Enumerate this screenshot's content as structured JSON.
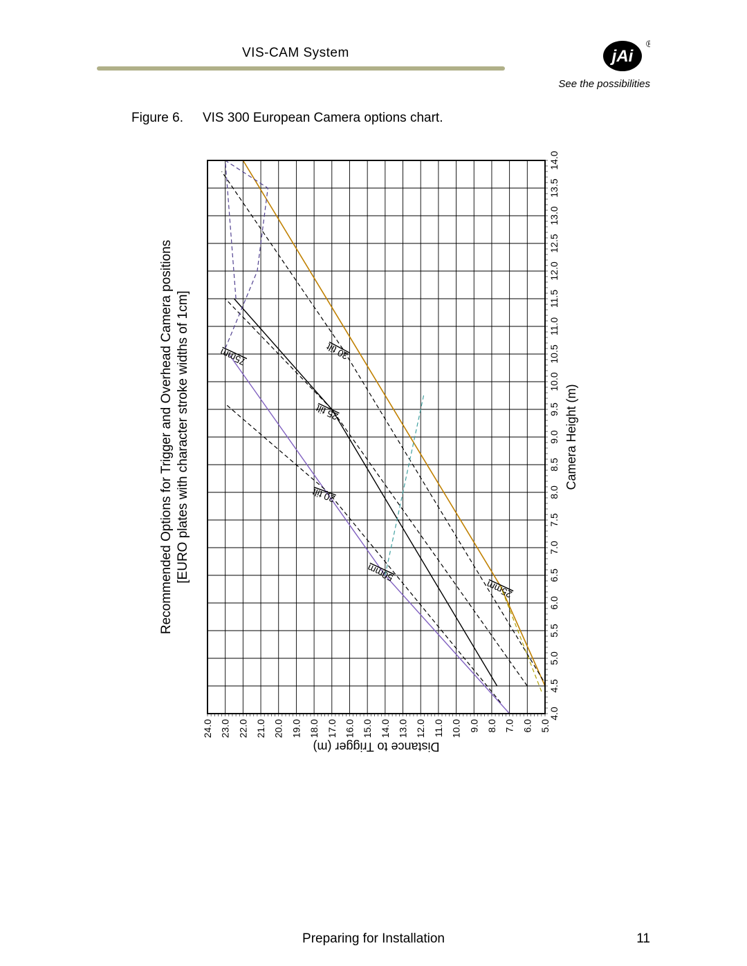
{
  "header": {
    "title": "VIS-CAM System",
    "tagline": "See the possibilities",
    "rule_color": "#b0b088",
    "logo_bg": "#000000",
    "logo_fg": "#ffffff"
  },
  "figure": {
    "label": "Figure 6.",
    "caption": "VIS 300 European Camera options chart."
  },
  "chart": {
    "type": "line",
    "title_line1": "Recommended Options for Trigger and Overhead Camera positions",
    "title_line2": "[EURO plates with character stroke widths of 1cm]",
    "title_fontsize": 19,
    "xlabel": "Camera Height (m)",
    "ylabel": "Distance to Trigger (m)",
    "axis_label_fontsize": 18,
    "tick_fontsize": 14,
    "background_color": "#ffffff",
    "grid_color": "#000000",
    "border_color": "#000000",
    "x": {
      "min": 4.0,
      "max": 14.0,
      "ticks": [
        4.0,
        4.5,
        5.0,
        5.5,
        6.0,
        6.5,
        7.0,
        7.5,
        8.0,
        8.5,
        9.0,
        9.5,
        10.0,
        10.5,
        11.0,
        11.5,
        12.0,
        12.5,
        13.0,
        13.5,
        14.0
      ],
      "minor_step": 0.1
    },
    "y": {
      "min": 5.0,
      "max": 24.0,
      "ticks": [
        5.0,
        6.0,
        7.0,
        8.0,
        9.0,
        10.0,
        11.0,
        12.0,
        13.0,
        14.0,
        15.0,
        16.0,
        17.0,
        18.0,
        19.0,
        20.0,
        21.0,
        22.0,
        23.0,
        24.0
      ],
      "minor_step": 0.2
    },
    "series": [
      {
        "name": "25mm",
        "label": "25mm",
        "color": "#c08000",
        "width": 1.6,
        "dash": "",
        "points": [
          [
            4.5,
            5.0
          ],
          [
            6.3,
            7.5
          ],
          [
            14.0,
            22.0
          ]
        ],
        "label_at": [
          6.3,
          7.5
        ],
        "label_angle": -65
      },
      {
        "name": "50mm",
        "label": "50mm",
        "color": "#8060c0",
        "width": 1.4,
        "dash": "",
        "points": [
          [
            4.0,
            7.0
          ],
          [
            6.5,
            14.0
          ],
          [
            10.5,
            22.8
          ]
        ],
        "label_at": [
          6.6,
          14.2
        ],
        "label_angle": -65
      },
      {
        "name": "75mm",
        "label": "75mm",
        "color": "#000000",
        "width": 1.4,
        "dash": "",
        "points": [
          [
            4.5,
            7.7
          ],
          [
            9.5,
            17.0
          ],
          [
            11.5,
            22.5
          ]
        ],
        "label_at": [
          10.5,
          22.5
        ],
        "label_angle": -65
      },
      {
        "name": "tilt20",
        "label": "20 tilt",
        "color": "#000000",
        "width": 1.2,
        "dash": "6,4",
        "points": [
          [
            4.2,
            7.5
          ],
          [
            8.0,
            17.2
          ],
          [
            9.6,
            23.0
          ]
        ],
        "label_at": [
          8.0,
          17.4
        ],
        "label_angle": -70
      },
      {
        "name": "tilt25",
        "label": "25 tilt",
        "color": "#000000",
        "width": 1.2,
        "dash": "6,4",
        "points": [
          [
            4.5,
            6.0
          ],
          [
            9.5,
            17.0
          ],
          [
            11.5,
            23.0
          ]
        ],
        "label_at": [
          9.5,
          17.2
        ],
        "label_angle": -65
      },
      {
        "name": "tilt30",
        "label": "30 tilt",
        "color": "#000000",
        "width": 1.2,
        "dash": "6,4",
        "points": [
          [
            4.6,
            5.1
          ],
          [
            10.6,
            16.4
          ],
          [
            13.8,
            23.2
          ]
        ],
        "label_at": [
          10.6,
          16.6
        ],
        "label_angle": -62
      },
      {
        "name": "aux1",
        "label": "",
        "color": "#40a0a0",
        "width": 1.2,
        "dash": "6,4",
        "points": [
          [
            6.5,
            14.0
          ],
          [
            9.8,
            11.8
          ]
        ]
      },
      {
        "name": "aux2",
        "label": "",
        "color": "#b0a000",
        "width": 1.2,
        "dash": "6,4",
        "points": [
          [
            4.4,
            5.2
          ],
          [
            6.3,
            7.5
          ]
        ]
      },
      {
        "name": "aux3",
        "label": "",
        "color": "#504090",
        "width": 1.2,
        "dash": "6,4",
        "points": [
          [
            11.5,
            22.4
          ],
          [
            14.0,
            23.0
          ],
          [
            13.5,
            20.6
          ],
          [
            12.0,
            21.2
          ],
          [
            10.6,
            23.0
          ]
        ]
      }
    ]
  },
  "footer": {
    "section": "Preparing for Installation",
    "page": "11"
  }
}
